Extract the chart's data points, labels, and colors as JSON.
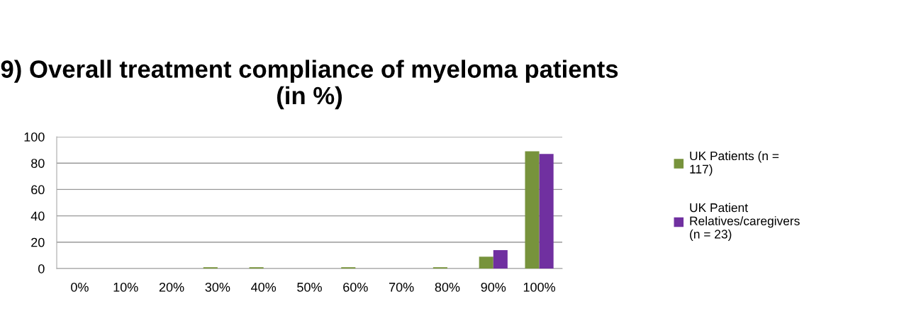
{
  "chart_data": {
    "type": "bar",
    "title": "9) Overall treatment compliance of myeloma patients (in %)",
    "categories": [
      "0%",
      "10%",
      "20%",
      "30%",
      "40%",
      "50%",
      "60%",
      "70%",
      "80%",
      "90%",
      "100%"
    ],
    "series": [
      {
        "name": "UK Patients (n = 117)",
        "color": "#77933c",
        "values": [
          0,
          0,
          0,
          1,
          1,
          0,
          1,
          0,
          1,
          9,
          89
        ]
      },
      {
        "name": "UK Patient Relatives/caregivers (n = 23)",
        "color": "#7030a0",
        "values": [
          0,
          0,
          0,
          0,
          0,
          0,
          0,
          0,
          0,
          14,
          87
        ]
      }
    ],
    "ylim": [
      0,
      100
    ],
    "yticks": [
      0,
      20,
      40,
      60,
      80,
      100
    ],
    "grid": "y",
    "legend": "right"
  }
}
